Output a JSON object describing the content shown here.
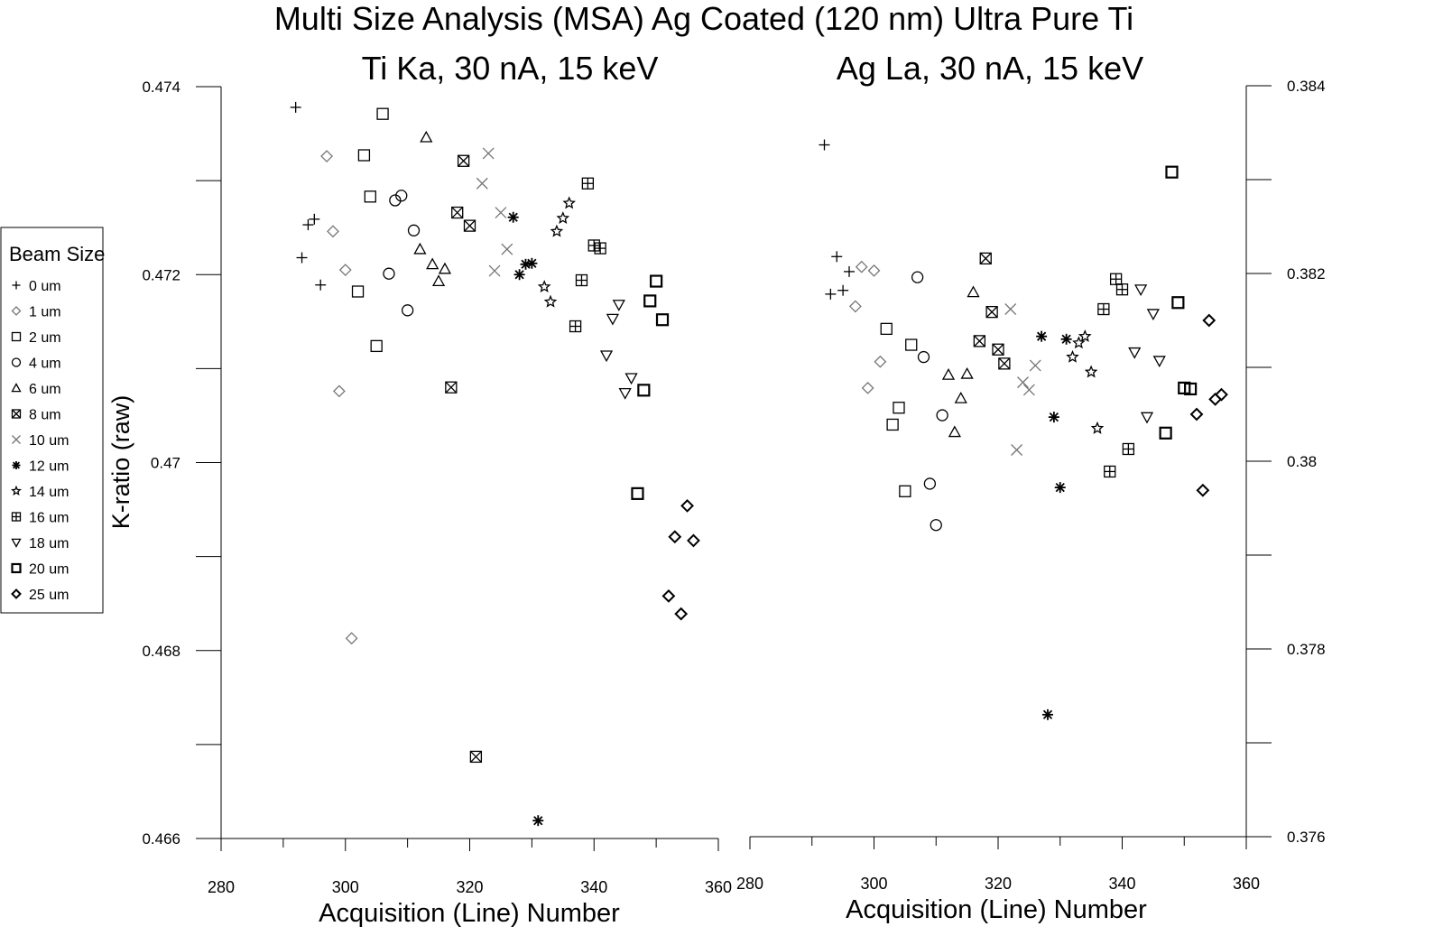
{
  "title": "Multi Size Analysis (MSA) Ag Coated (120 nm) Ultra Pure Ti",
  "legend": {
    "title": "Beam Size",
    "placement": "left",
    "items": [
      {
        "label": "0 um",
        "marker": "plus",
        "color": "#000000"
      },
      {
        "label": "1 um",
        "marker": "diamond",
        "color": "#777777"
      },
      {
        "label": "2 um",
        "marker": "square",
        "color": "#000000"
      },
      {
        "label": "4 um",
        "marker": "circle",
        "color": "#000000"
      },
      {
        "label": "6 um",
        "marker": "triangle-up",
        "color": "#000000"
      },
      {
        "label": "8 um",
        "marker": "boxed-x",
        "color": "#000000"
      },
      {
        "label": "10 um",
        "marker": "x",
        "color": "#777777"
      },
      {
        "label": "12 um",
        "marker": "asterisk",
        "color": "#000000"
      },
      {
        "label": "14 um",
        "marker": "star",
        "color": "#000000"
      },
      {
        "label": "16 um",
        "marker": "boxed-plus",
        "color": "#000000"
      },
      {
        "label": "18 um",
        "marker": "triangle-down",
        "color": "#000000"
      },
      {
        "label": "20 um",
        "marker": "square-bold",
        "color": "#000000"
      },
      {
        "label": "25 um",
        "marker": "diamond-bold",
        "color": "#000000"
      }
    ]
  },
  "chart_data": [
    {
      "type": "scatter",
      "title": "Ti Ka, 30 nA, 15 keV",
      "xlabel": "Acquisition (Line) Number",
      "ylabel": "K-ratio (raw)",
      "xlim": [
        280,
        360
      ],
      "ylim": [
        0.466,
        0.474
      ],
      "x_ticks": [
        280,
        300,
        320,
        340,
        360
      ],
      "x_tick_labels": [
        "280",
        "300",
        "320",
        "340",
        "360"
      ],
      "y_tick_labels": [
        "0.474",
        "0.472",
        "0.47",
        "0.468",
        "0.466"
      ],
      "y_ticks": [
        0.474,
        0.472,
        0.47,
        0.468,
        0.466
      ],
      "y_axis_side": "left",
      "grid": false,
      "series": [
        {
          "name": "0 um",
          "x": [
            292,
            293,
            294,
            295,
            296
          ],
          "y": [
            0.47378,
            0.47218,
            0.47253,
            0.47259,
            0.47189
          ]
        },
        {
          "name": "1 um",
          "x": [
            297,
            298,
            300,
            299,
            301
          ],
          "y": [
            0.47326,
            0.47246,
            0.47205,
            0.47076,
            0.46813
          ]
        },
        {
          "name": "2 um",
          "x": [
            306,
            303,
            304,
            302,
            305
          ],
          "y": [
            0.47371,
            0.47327,
            0.47283,
            0.47182,
            0.47124
          ]
        },
        {
          "name": "4 um",
          "x": [
            308,
            309,
            307,
            311,
            310
          ],
          "y": [
            0.47279,
            0.47284,
            0.47201,
            0.47247,
            0.47162
          ]
        },
        {
          "name": "6 um",
          "x": [
            313,
            312,
            314,
            315,
            316
          ],
          "y": [
            0.47346,
            0.47227,
            0.47211,
            0.47193,
            0.47206
          ]
        },
        {
          "name": "8 um",
          "x": [
            319,
            318,
            320,
            317,
            321
          ],
          "y": [
            0.47321,
            0.47266,
            0.47252,
            0.4708,
            0.46687
          ]
        },
        {
          "name": "10 um",
          "x": [
            323,
            322,
            325,
            326,
            324
          ],
          "y": [
            0.47329,
            0.47297,
            0.47266,
            0.47227,
            0.47204
          ]
        },
        {
          "name": "12 um",
          "x": [
            327,
            328,
            329,
            330,
            331
          ],
          "y": [
            0.47261,
            0.472,
            0.47211,
            0.47212,
            0.46619
          ]
        },
        {
          "name": "14 um",
          "x": [
            336,
            335,
            334,
            332,
            333
          ],
          "y": [
            0.47276,
            0.4726,
            0.47246,
            0.47187,
            0.47171
          ]
        },
        {
          "name": "16 um",
          "x": [
            339,
            340,
            341,
            338,
            337
          ],
          "y": [
            0.47297,
            0.47231,
            0.47228,
            0.47194,
            0.47145
          ]
        },
        {
          "name": "18 um",
          "x": [
            344,
            343,
            342,
            346,
            345
          ],
          "y": [
            0.47168,
            0.47153,
            0.47114,
            0.4709,
            0.47074
          ]
        },
        {
          "name": "20 um",
          "x": [
            350,
            349,
            351,
            348,
            347
          ],
          "y": [
            0.47193,
            0.47172,
            0.47152,
            0.47077,
            0.46967
          ]
        },
        {
          "name": "25 um",
          "x": [
            355,
            353,
            356,
            352,
            354
          ],
          "y": [
            0.46954,
            0.46921,
            0.46917,
            0.46858,
            0.46839
          ]
        }
      ]
    },
    {
      "type": "scatter",
      "title": "Ag La, 30 nA, 15 keV",
      "xlabel": "Acquisition (Line) Number",
      "ylabel": "",
      "xlim": [
        280,
        360
      ],
      "ylim": [
        0.376,
        0.384
      ],
      "x_ticks": [
        280,
        300,
        320,
        340,
        360
      ],
      "x_tick_labels": [
        "280",
        "300",
        "320",
        "340",
        "360"
      ],
      "y_tick_labels": [
        "0.384",
        "0.382",
        "0.38",
        "0.378",
        "0.376"
      ],
      "y_ticks": [
        0.384,
        0.382,
        0.38,
        0.378,
        0.376
      ],
      "y_axis_side": "right",
      "grid": false,
      "series": [
        {
          "name": "0 um",
          "x": [
            292,
            294,
            296,
            295,
            293
          ],
          "y": [
            0.38337,
            0.38218,
            0.38202,
            0.38182,
            0.38178
          ]
        },
        {
          "name": "1 um",
          "x": [
            298,
            300,
            297,
            301,
            299
          ],
          "y": [
            0.38207,
            0.38203,
            0.38165,
            0.38106,
            0.38078
          ]
        },
        {
          "name": "2 um",
          "x": [
            302,
            306,
            304,
            303,
            305
          ],
          "y": [
            0.38141,
            0.38124,
            0.38057,
            0.38039,
            0.37968
          ]
        },
        {
          "name": "4 um",
          "x": [
            307,
            308,
            311,
            309,
            310
          ],
          "y": [
            0.38196,
            0.38111,
            0.38049,
            0.37976,
            0.37932
          ]
        },
        {
          "name": "6 um",
          "x": [
            316,
            312,
            315,
            314,
            313
          ],
          "y": [
            0.3818,
            0.38092,
            0.38093,
            0.38067,
            0.38031
          ]
        },
        {
          "name": "8 um",
          "x": [
            318,
            319,
            317,
            320,
            321
          ],
          "y": [
            0.38216,
            0.38159,
            0.38128,
            0.38119,
            0.38104
          ]
        },
        {
          "name": "10 um",
          "x": [
            322,
            326,
            324,
            325,
            323
          ],
          "y": [
            0.38162,
            0.38102,
            0.38084,
            0.38076,
            0.38012
          ]
        },
        {
          "name": "12 um",
          "x": [
            327,
            331,
            329,
            330,
            328
          ],
          "y": [
            0.38133,
            0.3813,
            0.38047,
            0.37972,
            0.3773
          ]
        },
        {
          "name": "14 um",
          "x": [
            334,
            333,
            332,
            335,
            336
          ],
          "y": [
            0.38133,
            0.38126,
            0.38111,
            0.38095,
            0.38035
          ]
        },
        {
          "name": "16 um",
          "x": [
            339,
            340,
            337,
            341,
            338
          ],
          "y": [
            0.38194,
            0.38183,
            0.38162,
            0.38013,
            0.37989
          ]
        },
        {
          "name": "18 um",
          "x": [
            343,
            345,
            342,
            346,
            344
          ],
          "y": [
            0.38183,
            0.38157,
            0.38116,
            0.38107,
            0.38047
          ]
        },
        {
          "name": "20 um",
          "x": [
            348,
            349,
            350,
            351,
            347
          ],
          "y": [
            0.38308,
            0.38169,
            0.38078,
            0.38077,
            0.3803
          ]
        },
        {
          "name": "25 um",
          "x": [
            354,
            356,
            355,
            352,
            353
          ],
          "y": [
            0.3815,
            0.38071,
            0.38066,
            0.3805,
            0.37969
          ]
        }
      ]
    }
  ]
}
